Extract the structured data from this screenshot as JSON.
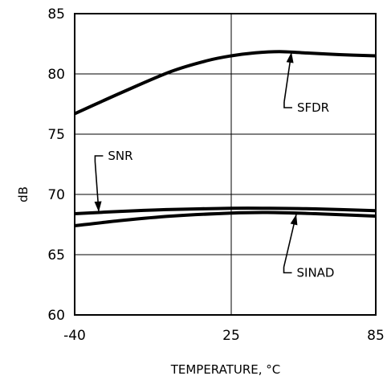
{
  "chart_data": {
    "type": "line",
    "title": "",
    "xlabel": "TEMPERATURE, °C",
    "ylabel": "dB",
    "xlim": [
      -40,
      85
    ],
    "ylim": [
      60,
      85
    ],
    "x_ticks": [
      -40,
      25,
      85
    ],
    "x_tick_labels": [
      "-40",
      "25",
      "85"
    ],
    "y_ticks": [
      60,
      65,
      70,
      75,
      80,
      85
    ],
    "y_tick_labels": [
      "60",
      "65",
      "70",
      "75",
      "80",
      "85"
    ],
    "grid": true,
    "legend": "none",
    "line_color": "#000000",
    "series": [
      {
        "name": "SFDR",
        "x": [
          -40,
          -20,
          0,
          15,
          25,
          35,
          45,
          55,
          70,
          85
        ],
        "y": [
          76.7,
          78.5,
          80.2,
          81.1,
          81.5,
          81.75,
          81.85,
          81.75,
          81.6,
          81.5
        ]
      },
      {
        "name": "SNR",
        "x": [
          -40,
          -20,
          0,
          25,
          40,
          60,
          85
        ],
        "y": [
          68.4,
          68.6,
          68.75,
          68.85,
          68.85,
          68.8,
          68.65
        ]
      },
      {
        "name": "SINAD",
        "x": [
          -40,
          -20,
          0,
          25,
          40,
          60,
          85
        ],
        "y": [
          67.4,
          67.85,
          68.2,
          68.45,
          68.5,
          68.4,
          68.2
        ]
      }
    ],
    "annotations": [
      {
        "text": "SFDR",
        "series": "SFDR",
        "label_at": [
          59,
          77.2
        ],
        "arrow_to": [
          50,
          81.8
        ]
      },
      {
        "text": "SNR",
        "series": "SNR",
        "label_at": [
          -21,
          73.2
        ],
        "arrow_to": [
          -30,
          68.55
        ]
      },
      {
        "text": "SINAD",
        "series": "SINAD",
        "label_at": [
          60,
          63.5
        ],
        "arrow_to": [
          52,
          68.35
        ]
      }
    ]
  }
}
